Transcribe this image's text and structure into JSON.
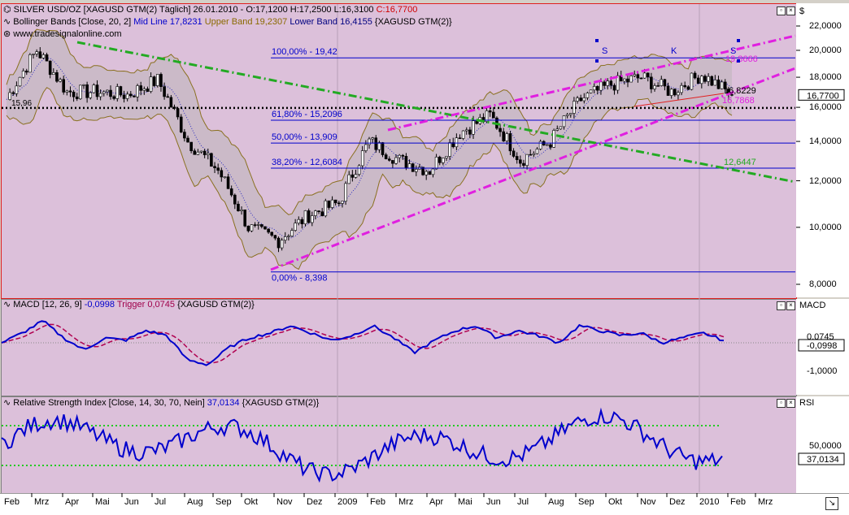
{
  "header": {
    "instrument": "SILVER USD/OZ [XAGUSD GTM(2)  Täglich] 26.01.2010 - O:17,1200 H:17,2500 L:16,3100",
    "close": "C:16,7700",
    "bb_name": "Bollinger Bands [Close, 20, 2]",
    "bb_mid": "Mid Line 17,8231",
    "bb_upper": "Upper Band 19,2307",
    "bb_lower": "Lower Band 16,4155",
    "bb_src": "{XAGUSD GTM(2)}",
    "watermark": "www.tradesignalonline.com"
  },
  "macd": {
    "name": "MACD [12, 26, 9]",
    "value": "-0,0998",
    "trigger": "Trigger 0,0745",
    "src": "{XAGUSD GTM(2)}"
  },
  "rsi": {
    "name": "Relative Strength Index [Close, 14, 30, 70, Nein]",
    "value": "37,0134",
    "src": "{XAGUSD GTM(2)}"
  },
  "axes": {
    "price_unit": "$",
    "macd_unit": "MACD",
    "rsi_unit": "RSI",
    "price_ticks": [
      "22,0000",
      "20,0000",
      "18,0000",
      "16,0000",
      "14,0000",
      "12,0000",
      "10,0000",
      "8,0000"
    ],
    "macd_ticks": [
      "0,0745",
      "-0,0998",
      "-1,0000"
    ],
    "rsi_ticks": [
      "50,0000",
      "37,0134"
    ],
    "current_price": "16,7700",
    "x_labels": [
      "Feb",
      "Mrz",
      "Apr",
      "Mai",
      "Jun",
      "Jul",
      "Aug",
      "Sep",
      "Okt",
      "Nov",
      "Dez",
      "2009",
      "Feb",
      "Mrz",
      "Apr",
      "Mai",
      "Jun",
      "Jul",
      "Aug",
      "Sep",
      "Okt",
      "Nov",
      "Dez",
      "2010",
      "Feb",
      "Mrz"
    ]
  },
  "annotations": {
    "fib_100": "100,00% - 19,42",
    "fib_618": "61,80% - 15,2096",
    "fib_50": "50,00% - 13,909",
    "fib_382": "38,20% - 12,6084",
    "fib_0": "0,00% - 8,398",
    "left_level": "15,96",
    "green_line_value": "12,6447",
    "upper_channel_value": "19,8666",
    "mid_value": "16,8229",
    "lower_channel_value": "16,7868",
    "wave_s1": "S",
    "wave_k": "K",
    "wave_s2": "S"
  },
  "chart_data": [
    {
      "type": "line",
      "title": "SILVER USD/OZ [XAGUSD GTM(2)  Täglich]",
      "ylabel": "$",
      "ylim": [
        8,
        22
      ],
      "log_scale": true,
      "x": [
        "Feb",
        "Mrz",
        "Apr",
        "Mai",
        "Jun",
        "Jul",
        "Aug",
        "Sep",
        "Okt",
        "Nov",
        "Dez",
        "2009",
        "Feb",
        "Mrz",
        "Apr",
        "Mai",
        "Jun",
        "Jul",
        "Aug",
        "Sep",
        "Okt",
        "Nov",
        "Dez",
        "2010",
        "Feb"
      ],
      "series": [
        {
          "name": "Close",
          "values": [
            16.5,
            20.0,
            17.0,
            17.0,
            16.8,
            17.8,
            14.0,
            12.5,
            10.0,
            9.5,
            10.5,
            11.0,
            14.0,
            13.0,
            12.5,
            14.5,
            15.5,
            13.0,
            14.0,
            16.5,
            17.5,
            18.0,
            17.0,
            18.2,
            16.77
          ]
        }
      ],
      "fibonacci": [
        {
          "label": "100,00%",
          "value": 19.42
        },
        {
          "label": "61,80%",
          "value": 15.2096
        },
        {
          "label": "50,00%",
          "value": 13.909
        },
        {
          "label": "38,20%",
          "value": 12.6084
        },
        {
          "label": "0,00%",
          "value": 8.398
        }
      ],
      "horizontal_levels": [
        15.96
      ],
      "grid": false
    },
    {
      "type": "line",
      "title": "MACD [12, 26, 9]",
      "series": [
        {
          "name": "MACD",
          "last": -0.0998
        },
        {
          "name": "Trigger",
          "last": 0.0745
        }
      ]
    },
    {
      "type": "line",
      "title": "Relative Strength Index [Close, 14, 30, 70, Nein]",
      "bands": [
        30,
        70
      ],
      "series": [
        {
          "name": "RSI",
          "last": 37.0134
        }
      ]
    }
  ]
}
